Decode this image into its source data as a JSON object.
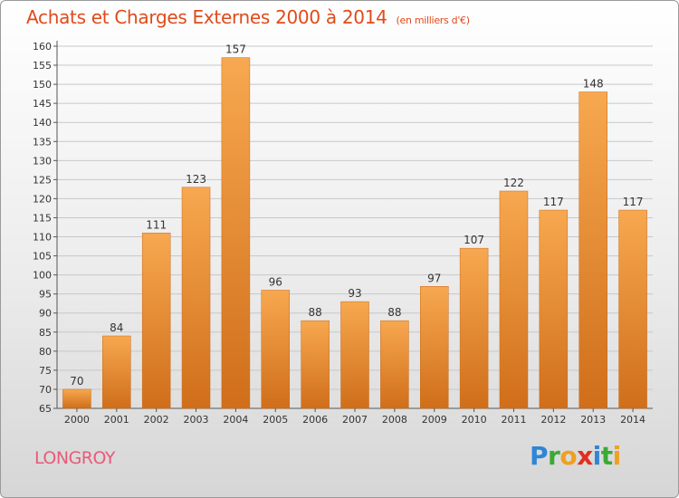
{
  "header": {
    "title": "Achats et Charges Externes 2000 à 2014",
    "subtitle": "(en milliers d'€)"
  },
  "footer": {
    "commune": "LONGROY",
    "logo_letters": [
      {
        "ch": "P",
        "color": "#2e86d6"
      },
      {
        "ch": "r",
        "color": "#3aaa35"
      },
      {
        "ch": "o",
        "color": "#f0a020"
      },
      {
        "ch": "x",
        "color": "#e03020"
      },
      {
        "ch": "i",
        "color": "#2e86d6"
      },
      {
        "ch": "t",
        "color": "#3aaa35"
      },
      {
        "ch": "i",
        "color": "#f0a020"
      }
    ]
  },
  "colors": {
    "bar_light": "#f7a850",
    "bar_dark": "#d06e1a",
    "axis": "#555555",
    "grid": "#c8c8c8"
  },
  "chart_data": {
    "type": "bar",
    "categories": [
      "2000",
      "2001",
      "2002",
      "2003",
      "2004",
      "2005",
      "2006",
      "2007",
      "2008",
      "2009",
      "2010",
      "2011",
      "2012",
      "2013",
      "2014"
    ],
    "values": [
      70,
      84,
      111,
      123,
      157,
      96,
      88,
      93,
      88,
      97,
      107,
      122,
      117,
      148,
      117
    ],
    "ylim": [
      65,
      160
    ],
    "yticks": [
      65,
      70,
      75,
      80,
      85,
      90,
      95,
      100,
      105,
      110,
      115,
      120,
      125,
      130,
      135,
      140,
      145,
      150,
      155,
      160
    ],
    "grid": true,
    "legend": "none"
  }
}
